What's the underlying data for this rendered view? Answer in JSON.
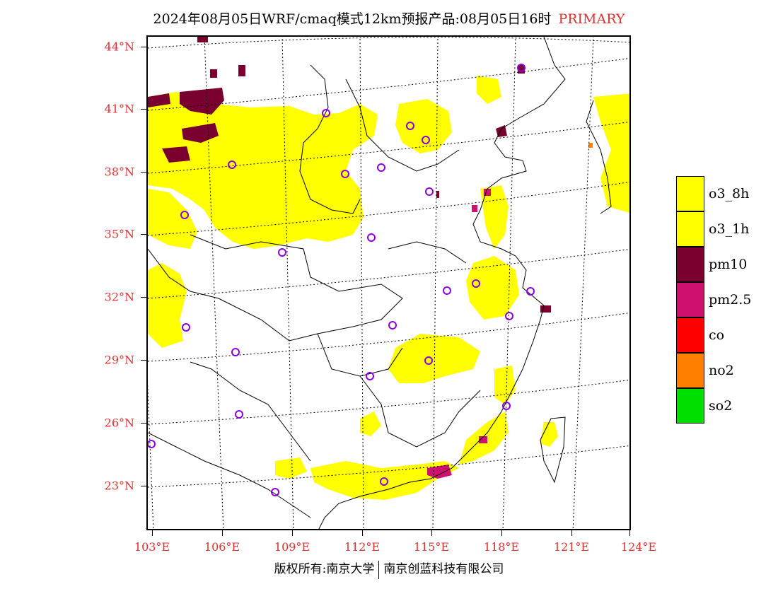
{
  "title": {
    "main": "2024年08月05日WRF/cmaq模式12km预报产品:08月05日16时",
    "tag": "PRIMARY"
  },
  "axes": {
    "lat_labels": [
      "44°N",
      "41°N",
      "38°N",
      "35°N",
      "32°N",
      "29°N",
      "26°N",
      "23°N"
    ],
    "lon_labels": [
      "103°E",
      "106°E",
      "109°E",
      "112°E",
      "115°E",
      "118°E",
      "121°E",
      "124°E"
    ]
  },
  "legend": [
    {
      "label": "o3_8h",
      "color": "#ffff00"
    },
    {
      "label": "o3_1h",
      "color": "#ffff00"
    },
    {
      "label": "pm10",
      "color": "#7a0030"
    },
    {
      "label": "pm2.5",
      "color": "#d0106e"
    },
    {
      "label": "co",
      "color": "#ff0000"
    },
    {
      "label": "no2",
      "color": "#ff8000"
    },
    {
      "label": "so2",
      "color": "#00e000"
    }
  ],
  "colors": {
    "o3": "#ffff00",
    "pm10": "#7a0030",
    "pm25": "#d0106e",
    "no2": "#ff8000",
    "station": "#8a00e0",
    "axis_label": "#e03030"
  },
  "footer": {
    "left": "版权所有:南京大学",
    "right": "南京创蓝科技有限公司"
  }
}
